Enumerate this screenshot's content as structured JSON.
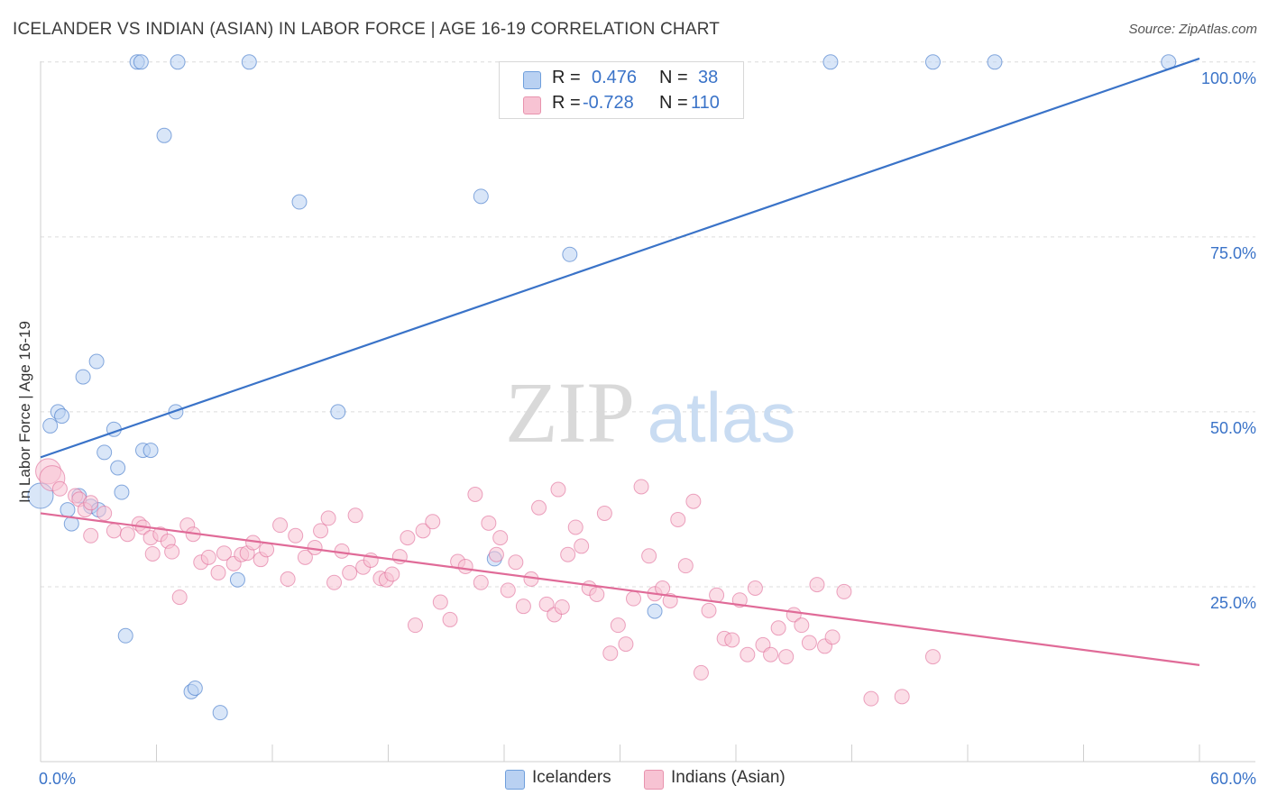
{
  "title": "ICELANDER VS INDIAN (ASIAN) IN LABOR FORCE | AGE 16-19 CORRELATION CHART",
  "source": "Source: ZipAtlas.com",
  "watermark": {
    "zip": "ZIP",
    "atlas": "atlas"
  },
  "legend": {
    "rows": [
      {
        "r_label": "R =",
        "r_value": "0.476",
        "n_label": "N =",
        "n_value": "38",
        "fill": "#b9d1f2",
        "stroke": "#6f9fdc"
      },
      {
        "r_label": "R =",
        "r_value": "-0.728",
        "n_label": "N =",
        "n_value": "110",
        "fill": "#f7c3d3",
        "stroke": "#e893ae"
      }
    ]
  },
  "bottom_legend": [
    {
      "label": "Icelanders",
      "fill": "#b9d1f2",
      "stroke": "#6f9fdc"
    },
    {
      "label": "Indians (Asian)",
      "fill": "#f7c3d3",
      "stroke": "#e893ae"
    }
  ],
  "chart_data": {
    "type": "scatter",
    "ylabel": "In Labor Force | Age 16-19",
    "xlim": [
      0,
      60
    ],
    "ylim": [
      0,
      105
    ],
    "x_tick_labels": [
      {
        "value": 0,
        "label": "0.0%"
      },
      {
        "value": 60,
        "label": "60.0%"
      }
    ],
    "y_tick_labels": [
      {
        "value": 100,
        "label": "100.0%"
      },
      {
        "value": 75,
        "label": "75.0%"
      },
      {
        "value": 50,
        "label": "50.0%"
      },
      {
        "value": 25,
        "label": "25.0%"
      }
    ],
    "grid": true,
    "series": [
      {
        "name": "Icelanders",
        "color": "#3a73c8",
        "fill": "#b9d1f2",
        "points": [
          [
            5.0,
            100
          ],
          [
            5.2,
            100
          ],
          [
            7.1,
            100
          ],
          [
            10.8,
            100
          ],
          [
            40.9,
            100
          ],
          [
            46.2,
            100
          ],
          [
            49.4,
            100
          ],
          [
            58.4,
            100
          ],
          [
            6.4,
            89.5
          ],
          [
            13.4,
            80.0
          ],
          [
            22.8,
            80.8
          ],
          [
            27.4,
            72.5
          ],
          [
            2.9,
            57.2
          ],
          [
            2.2,
            55.0
          ],
          [
            0.9,
            50.0
          ],
          [
            1.1,
            49.4
          ],
          [
            7.0,
            50.0
          ],
          [
            15.4,
            50.0
          ],
          [
            0.5,
            48.0
          ],
          [
            3.8,
            47.5
          ],
          [
            3.3,
            44.2
          ],
          [
            5.3,
            44.5
          ],
          [
            5.7,
            44.5
          ],
          [
            4.0,
            42.0
          ],
          [
            4.2,
            38.5
          ],
          [
            2.0,
            38.0
          ],
          [
            2.6,
            36.5
          ],
          [
            3.0,
            36.0
          ],
          [
            1.4,
            36.0
          ],
          [
            1.6,
            34.0
          ],
          [
            0.0,
            38.0
          ],
          [
            23.5,
            29.0
          ],
          [
            10.2,
            26.0
          ],
          [
            31.8,
            21.5
          ],
          [
            4.4,
            18.0
          ],
          [
            7.8,
            10.0
          ],
          [
            8.0,
            10.5
          ],
          [
            9.3,
            7.0
          ]
        ],
        "trend": {
          "x": [
            0,
            60
          ],
          "y": [
            43.5,
            100.5
          ]
        }
      },
      {
        "name": "Indians (Asian)",
        "color": "#e06b98",
        "fill": "#f7c3d3",
        "points": [
          [
            0.4,
            41.5
          ],
          [
            0.6,
            40.5
          ],
          [
            1.0,
            39.0
          ],
          [
            1.8,
            38.0
          ],
          [
            2.0,
            37.5
          ],
          [
            2.3,
            36.0
          ],
          [
            3.3,
            35.5
          ],
          [
            2.6,
            37.0
          ],
          [
            3.8,
            33.0
          ],
          [
            4.5,
            32.5
          ],
          [
            5.1,
            34.0
          ],
          [
            5.3,
            33.5
          ],
          [
            5.7,
            32.0
          ],
          [
            6.2,
            32.5
          ],
          [
            6.6,
            31.5
          ],
          [
            6.8,
            30.0
          ],
          [
            2.6,
            32.3
          ],
          [
            5.8,
            29.7
          ],
          [
            7.2,
            23.5
          ],
          [
            7.6,
            33.8
          ],
          [
            7.9,
            32.5
          ],
          [
            8.3,
            28.5
          ],
          [
            8.7,
            29.2
          ],
          [
            9.2,
            27.0
          ],
          [
            9.5,
            29.8
          ],
          [
            10.0,
            28.3
          ],
          [
            10.4,
            29.6
          ],
          [
            10.7,
            29.8
          ],
          [
            11.0,
            31.3
          ],
          [
            11.4,
            28.9
          ],
          [
            11.7,
            30.3
          ],
          [
            12.4,
            33.8
          ],
          [
            12.8,
            26.1
          ],
          [
            13.2,
            32.3
          ],
          [
            13.7,
            29.2
          ],
          [
            14.2,
            30.6
          ],
          [
            14.5,
            33.0
          ],
          [
            14.9,
            34.8
          ],
          [
            15.2,
            25.6
          ],
          [
            15.6,
            30.1
          ],
          [
            16.0,
            27.0
          ],
          [
            16.3,
            35.2
          ],
          [
            16.7,
            27.8
          ],
          [
            17.1,
            28.8
          ],
          [
            17.6,
            26.2
          ],
          [
            17.9,
            26.0
          ],
          [
            18.2,
            26.8
          ],
          [
            18.6,
            29.3
          ],
          [
            19.0,
            32.0
          ],
          [
            19.4,
            19.5
          ],
          [
            19.8,
            33.0
          ],
          [
            20.3,
            34.3
          ],
          [
            20.7,
            22.8
          ],
          [
            21.2,
            20.3
          ],
          [
            21.6,
            28.6
          ],
          [
            22.0,
            27.9
          ],
          [
            22.5,
            38.2
          ],
          [
            22.8,
            25.6
          ],
          [
            23.2,
            34.1
          ],
          [
            23.6,
            29.6
          ],
          [
            23.8,
            32.0
          ],
          [
            24.2,
            24.5
          ],
          [
            24.6,
            28.5
          ],
          [
            25.0,
            22.2
          ],
          [
            25.4,
            26.1
          ],
          [
            25.8,
            36.3
          ],
          [
            26.2,
            22.5
          ],
          [
            26.6,
            21.0
          ],
          [
            27.0,
            22.1
          ],
          [
            27.3,
            29.6
          ],
          [
            27.7,
            33.5
          ],
          [
            28.0,
            30.8
          ],
          [
            28.4,
            24.8
          ],
          [
            28.8,
            23.9
          ],
          [
            29.2,
            35.5
          ],
          [
            29.5,
            15.5
          ],
          [
            29.9,
            19.5
          ],
          [
            30.3,
            16.8
          ],
          [
            30.7,
            23.3
          ],
          [
            31.1,
            39.3
          ],
          [
            31.5,
            29.4
          ],
          [
            31.8,
            24.0
          ],
          [
            32.2,
            24.8
          ],
          [
            32.6,
            23.0
          ],
          [
            33.0,
            34.6
          ],
          [
            33.4,
            28.0
          ],
          [
            33.8,
            37.2
          ],
          [
            34.2,
            12.7
          ],
          [
            34.6,
            21.6
          ],
          [
            35.0,
            23.8
          ],
          [
            35.4,
            17.6
          ],
          [
            35.8,
            17.4
          ],
          [
            36.2,
            23.1
          ],
          [
            36.6,
            15.3
          ],
          [
            37.0,
            24.8
          ],
          [
            37.4,
            16.7
          ],
          [
            37.8,
            15.3
          ],
          [
            38.2,
            19.1
          ],
          [
            38.6,
            15.0
          ],
          [
            39.0,
            21.0
          ],
          [
            39.4,
            19.5
          ],
          [
            39.8,
            17.0
          ],
          [
            40.2,
            25.3
          ],
          [
            40.6,
            16.5
          ],
          [
            41.0,
            17.8
          ],
          [
            41.6,
            24.3
          ],
          [
            43.0,
            9.0
          ],
          [
            44.6,
            9.3
          ],
          [
            46.2,
            15.0
          ],
          [
            26.8,
            38.9
          ]
        ],
        "trend": {
          "x": [
            0,
            60
          ],
          "y": [
            35.5,
            13.8
          ]
        }
      }
    ]
  }
}
